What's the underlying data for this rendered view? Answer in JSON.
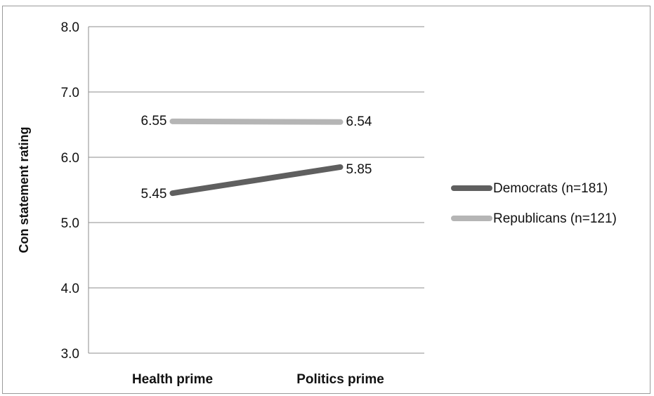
{
  "chart_data": {
    "type": "line",
    "title": "",
    "xlabel": "",
    "ylabel": "Con statement rating",
    "categories": [
      "Health prime",
      "Politics prime"
    ],
    "ylim": [
      3.0,
      8.0
    ],
    "yticks": [
      "3.0",
      "4.0",
      "5.0",
      "6.0",
      "7.0",
      "8.0"
    ],
    "grid": true,
    "legend_position": "right",
    "series": [
      {
        "name": "Democrats (n=181)",
        "values": [
          5.45,
          5.85
        ],
        "labels": [
          "5.45",
          "5.85"
        ],
        "color": "#5f5f5f"
      },
      {
        "name": "Republicans (n=121)",
        "values": [
          6.55,
          6.54
        ],
        "labels": [
          "6.55",
          "6.54"
        ],
        "color": "#b5b5b5"
      }
    ]
  }
}
